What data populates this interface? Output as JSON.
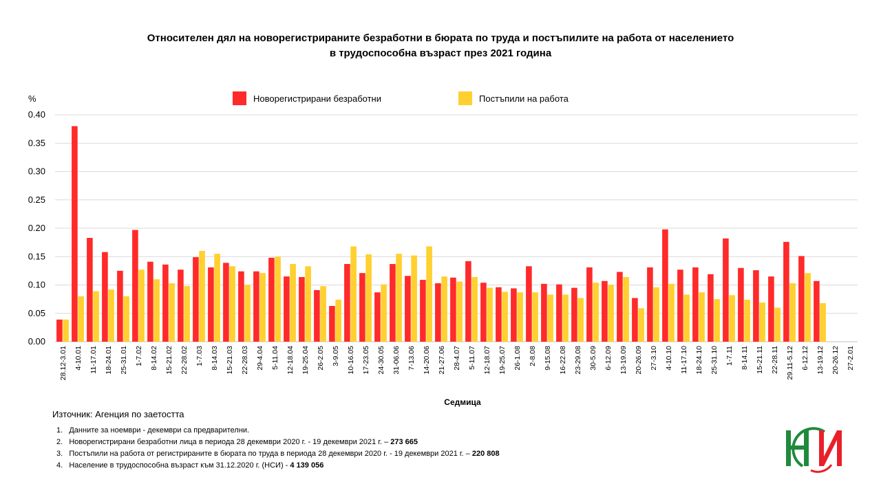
{
  "title_line1": "Относителен дял на новорегистрираните безработни в бюрата по труда и постъпилите на работа от населението",
  "title_line2": "в трудоспособна възраст през 2021 година",
  "source": "Източник: Агенция по заетостта",
  "notes": [
    {
      "num": "1.",
      "text": "Данните за ноември  - декември  са предварителни.",
      "bold": ""
    },
    {
      "num": "2.",
      "text": "Новорегистрирани безработни лица в периода  28 декември  2020 г. - 19 декември  2021 г. – ",
      "bold": "273 665"
    },
    {
      "num": "3.",
      "text": "Постъпили на работа от регистрираните в бюрата по труда в периода  28 декември  2020 г. - 19 декември  2021 г. – ",
      "bold": "220 808"
    },
    {
      "num": "4.",
      "text": "Население в трудоспособна възраст към 31.12.2020 г. (НСИ)   - ",
      "bold": "4 139 056"
    }
  ],
  "colors": {
    "series1": "#ff2a2a",
    "series2": "#ffd030",
    "grid": "#d9d9d9",
    "axis": "#bfbfbf",
    "logo_red": "#e8202a",
    "logo_green": "#1f8a3c"
  },
  "chart_data": {
    "type": "bar",
    "ylabel": "%",
    "xlabel": "Седмица",
    "ylim": [
      0,
      0.4
    ],
    "yticks": [
      "0.00",
      "0.05",
      "0.10",
      "0.15",
      "0.20",
      "0.25",
      "0.30",
      "0.35",
      "0.40"
    ],
    "legend_position": "top-center",
    "grid": true,
    "categories": [
      "28.12-3.01",
      "4-10.01",
      "11-17.01",
      "18-24.01",
      "25-31.01",
      "1-7.02",
      "8-14.02",
      "15-21.02",
      "22-28.02",
      "1-7.03",
      "8-14.03",
      "15-21.03",
      "22-28.03",
      "29-4.04",
      "5-11.04",
      "12-18.04",
      "19-25.04",
      "26-2.05",
      "3-9.05",
      "10-16.05",
      "17-23.05",
      "24-30.05",
      "31-06.06",
      "7-13.06",
      "14-20.06",
      "21-27.06",
      "28-4.07",
      "5-11.07",
      "12-18.07",
      "19-25.07",
      "26-1.08",
      "2-8.08",
      "9-15.08",
      "16-22.08",
      "23-29.08",
      "30-5.09",
      "6-12.09",
      "13-19.09",
      "20-26.09",
      "27-3.10",
      "4-10.10",
      "11-17.10",
      "18-24.10",
      "25-31.10",
      "1-7.11",
      "8-14.11",
      "15-21.11",
      "22-28.11",
      "29.11-5.12",
      "6-12.12",
      "13-19.12",
      "20-26.12",
      "27-2.01"
    ],
    "series": [
      {
        "name": "Новорегистрирани безработни",
        "values": [
          0.039,
          0.38,
          0.183,
          0.158,
          0.125,
          0.197,
          0.141,
          0.136,
          0.127,
          0.149,
          0.131,
          0.139,
          0.124,
          0.124,
          0.148,
          0.115,
          0.114,
          0.091,
          0.063,
          0.137,
          0.121,
          0.087,
          0.137,
          0.116,
          0.109,
          0.103,
          0.113,
          0.142,
          0.104,
          0.096,
          0.094,
          0.133,
          0.102,
          0.101,
          0.095,
          0.131,
          0.107,
          0.123,
          0.077,
          0.131,
          0.198,
          0.127,
          0.131,
          0.119,
          0.182,
          0.13,
          0.126,
          0.115,
          0.176,
          0.151,
          0.107,
          null,
          null
        ]
      },
      {
        "name": "Постъпили на работа",
        "values": [
          0.039,
          0.08,
          0.089,
          0.092,
          0.08,
          0.127,
          0.11,
          0.103,
          0.098,
          0.16,
          0.155,
          0.133,
          0.1,
          0.121,
          0.15,
          0.137,
          0.133,
          0.098,
          0.074,
          0.168,
          0.154,
          0.101,
          0.155,
          0.152,
          0.168,
          0.115,
          0.106,
          0.114,
          0.095,
          0.088,
          0.087,
          0.087,
          0.083,
          0.083,
          0.077,
          0.104,
          0.1,
          0.114,
          0.059,
          0.096,
          0.102,
          0.083,
          0.087,
          0.075,
          0.082,
          0.074,
          0.069,
          0.06,
          0.103,
          0.121,
          0.068,
          null,
          null
        ]
      }
    ]
  }
}
